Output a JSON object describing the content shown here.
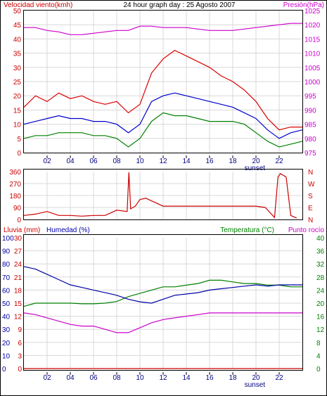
{
  "header": {
    "left_title": "Velocidad viento(kmh)",
    "center_title": "24 hour graph day : 25 Agosto 2007",
    "right_title": "Presión(hPa)"
  },
  "colors": {
    "frame": "#000000",
    "wind_avg": "#0000cc",
    "wind_gust": "#dd0000",
    "wind_low": "#008000",
    "pressure": "#cc00cc",
    "direction": "#cc0000",
    "rain": "#cc0000",
    "humidity": "#0000aa",
    "temperature": "#008000",
    "dewpoint": "#cc00cc"
  },
  "x_axis": {
    "tick_labels": [
      "02",
      "04",
      "06",
      "08",
      "10",
      "12",
      "14",
      "16",
      "18",
      "20",
      "22"
    ],
    "sunset_label": "sunset"
  },
  "chart_data": [
    {
      "type": "line",
      "name": "wind",
      "title": "Velocidad viento(kmh)",
      "ylabel": "Velocidad viento(kmh)",
      "ylim": [
        0,
        50
      ],
      "y_ticks": [
        "0",
        "5",
        "10",
        "15",
        "20",
        "25",
        "30",
        "35",
        "40",
        "45",
        "50"
      ],
      "y2label": "Presión(hPa)",
      "y2lim": [
        975,
        1025
      ],
      "y2_ticks": [
        "975",
        "980",
        "985",
        "990",
        "995",
        "1000",
        "1005",
        "1010",
        "1015",
        "1020",
        "1025"
      ],
      "x": [
        0,
        1,
        2,
        3,
        4,
        5,
        6,
        7,
        8,
        9,
        10,
        11,
        12,
        13,
        14,
        15,
        16,
        17,
        18,
        19,
        20,
        21,
        22,
        23,
        24
      ],
      "series": [
        {
          "key": "gust",
          "values": [
            16,
            20,
            18,
            21,
            19,
            20,
            18,
            17,
            18,
            14,
            17,
            28,
            33,
            36,
            34,
            32,
            30,
            27,
            25,
            22,
            18,
            12,
            8,
            9,
            9
          ]
        },
        {
          "key": "avg",
          "values": [
            10,
            11,
            12,
            13,
            12,
            12,
            11,
            11,
            10,
            7,
            10,
            18,
            20,
            21,
            20,
            19,
            18,
            17,
            16,
            14,
            12,
            8,
            5,
            7,
            8
          ]
        },
        {
          "key": "low",
          "values": [
            5,
            6,
            6,
            7,
            7,
            7,
            6,
            6,
            5,
            2,
            5,
            11,
            14,
            13,
            13,
            12,
            11,
            11,
            11,
            10,
            7,
            4,
            2,
            3,
            4
          ]
        },
        {
          "key": "pressure",
          "values": [
            1019,
            1019,
            1018,
            1017.5,
            1016.5,
            1016.5,
            1017,
            1017.5,
            1018,
            1018,
            1019.5,
            1019.5,
            1019,
            1019,
            1019,
            1018.5,
            1018,
            1018,
            1018,
            1018.5,
            1019,
            1019.5,
            1020,
            1020.5,
            1020.5
          ]
        }
      ]
    },
    {
      "type": "line",
      "name": "direction",
      "ylim": [
        0,
        360
      ],
      "y_ticks": [
        "0",
        "90",
        "180",
        "270",
        "360"
      ],
      "y2_ticks": [
        "N",
        "E",
        "S",
        "W",
        "N"
      ],
      "x": [
        0,
        1,
        2,
        3,
        4,
        5,
        6,
        7,
        8,
        8.9,
        9.05,
        9.2,
        9.6,
        10,
        10.5,
        11,
        12,
        14,
        16,
        18,
        20,
        20.8,
        21.6,
        21.9,
        22.1,
        22.6,
        23,
        23.5
      ],
      "series": [
        {
          "key": "direction",
          "values": [
            30,
            40,
            60,
            30,
            30,
            25,
            30,
            30,
            70,
            60,
            355,
            80,
            100,
            150,
            160,
            140,
            100,
            100,
            100,
            100,
            100,
            90,
            15,
            320,
            345,
            320,
            30,
            10
          ]
        }
      ]
    },
    {
      "type": "line",
      "name": "humidity_temperature",
      "ylabel": "Lluvia (mm)",
      "ylim": [
        0,
        30
      ],
      "y_ticks": [
        "0",
        "3",
        "6",
        "9",
        "12",
        "15",
        "18",
        "21",
        "24",
        "27",
        "30"
      ],
      "y1label": "Humedad (%)",
      "y1lim": [
        0,
        100
      ],
      "y1_ticks": [
        "0",
        "10",
        "20",
        "30",
        "40",
        "50",
        "60",
        "70",
        "80",
        "90",
        "100"
      ],
      "y2label": "Temperatura (°C)",
      "y3label": "Punto rocío",
      "y2lim": [
        0,
        40
      ],
      "y2_ticks": [
        "0",
        "4",
        "8",
        "12",
        "16",
        "20",
        "24",
        "28",
        "32",
        "36",
        "40"
      ],
      "x": [
        0,
        1,
        2,
        3,
        4,
        5,
        6,
        7,
        8,
        9,
        10,
        11,
        12,
        13,
        14,
        15,
        16,
        17,
        18,
        19,
        20,
        21,
        22,
        23,
        24
      ],
      "series": [
        {
          "key": "rain",
          "values": [
            0,
            0,
            0,
            0,
            0,
            0,
            0,
            0,
            0,
            0,
            0,
            0,
            0,
            0,
            0,
            0,
            0,
            0,
            0,
            0,
            0,
            0,
            0,
            0,
            0
          ]
        },
        {
          "key": "humidity",
          "values": [
            78,
            76,
            72,
            68,
            64,
            62,
            60,
            58,
            56,
            53,
            51,
            50,
            53,
            56,
            57,
            58,
            60,
            61,
            62,
            63,
            64,
            63,
            64,
            64,
            64
          ]
        },
        {
          "key": "temperature",
          "values": [
            19,
            20,
            20,
            20,
            20,
            19.8,
            19.8,
            20,
            20.5,
            22,
            23,
            24,
            25,
            25,
            25.5,
            26,
            27,
            27,
            26.5,
            26,
            26,
            25.5,
            25.5,
            25,
            25
          ]
        },
        {
          "key": "dewpoint",
          "values": [
            17,
            16.5,
            15.5,
            14.5,
            13.5,
            13,
            13,
            12,
            11,
            11,
            12.5,
            14,
            15,
            15.5,
            16,
            16.5,
            17,
            17,
            17,
            17,
            17,
            17,
            17,
            17,
            17
          ]
        }
      ]
    }
  ]
}
